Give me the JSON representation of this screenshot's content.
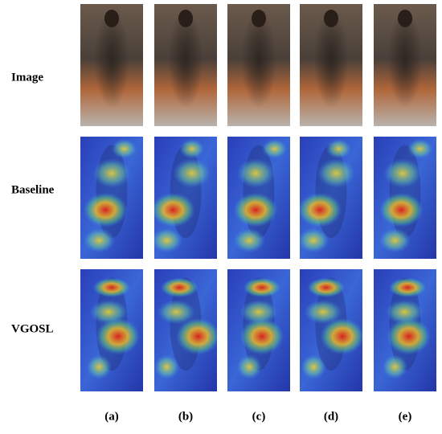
{
  "row_labels": [
    "Image",
    "Baseline",
    "VGOSL"
  ],
  "column_labels": [
    "(a)",
    "(b)",
    "(c)",
    "(d)",
    "(e)"
  ]
}
